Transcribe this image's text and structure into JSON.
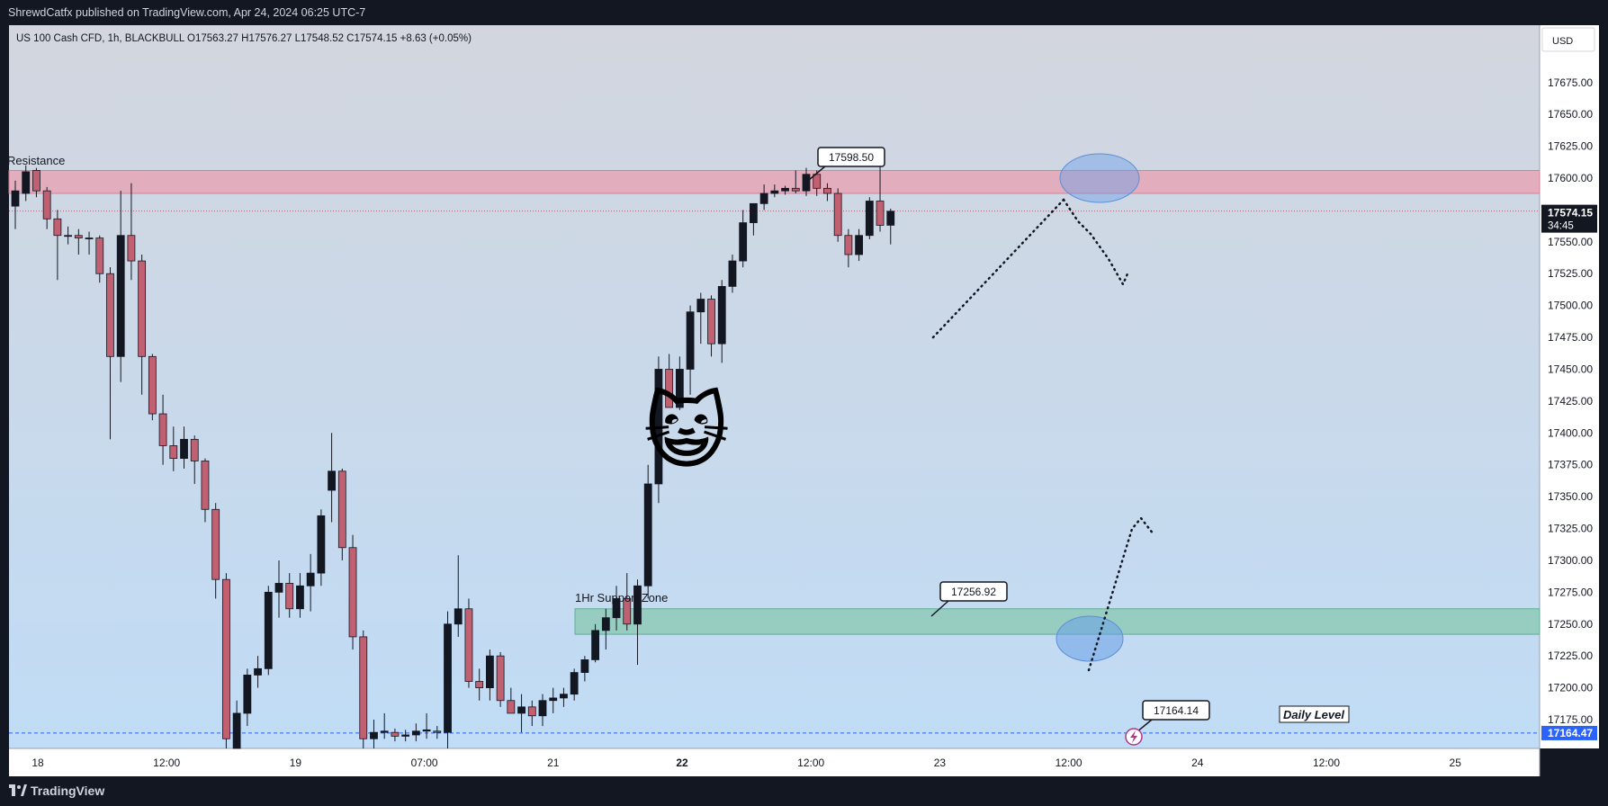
{
  "header": {
    "published": "ShrewdCatfx published on TradingView.com, Apr 24, 2024 06:25 UTC-7",
    "symbol_line": "US 100 Cash CFD, 1h, BLACKBULL  O17563.27  H17576.27  L17548.52  C17574.15  +8.63 (+0.05%)"
  },
  "footer": {
    "brand": "TradingView"
  },
  "price_scale": {
    "currency": "USD",
    "ticks": [
      "17675.00",
      "17650.00",
      "17625.00",
      "17600.00",
      "17575.00",
      "17550.00",
      "17525.00",
      "17500.00",
      "17475.00",
      "17450.00",
      "17425.00",
      "17400.00",
      "17375.00",
      "17350.00",
      "17325.00",
      "17300.00",
      "17275.00",
      "17250.00",
      "17225.00",
      "17200.00",
      "17175.00"
    ],
    "last_price": "17574.15",
    "countdown": "34:45",
    "daily_level_price": "17164.47"
  },
  "time_scale": {
    "labels": [
      {
        "text": "18",
        "bold": false
      },
      {
        "text": "12:00",
        "bold": false
      },
      {
        "text": "19",
        "bold": false
      },
      {
        "text": "07:00",
        "bold": false
      },
      {
        "text": "21",
        "bold": false
      },
      {
        "text": "22",
        "bold": true
      },
      {
        "text": "12:00",
        "bold": false
      },
      {
        "text": "23",
        "bold": false
      },
      {
        "text": "12:00",
        "bold": false
      },
      {
        "text": "24",
        "bold": false
      },
      {
        "text": "12:00",
        "bold": false
      },
      {
        "text": "25",
        "bold": false
      },
      {
        "text": "12:00",
        "bold": false
      }
    ]
  },
  "annotations": {
    "resistance_label": "Resistance",
    "support_label": "1Hr Support Zone",
    "daily_level_label": "Daily Level",
    "callouts": [
      "17598.50",
      "17256.92",
      "17164.14"
    ],
    "emoji": "😺"
  },
  "colors": {
    "bull": "#131722",
    "bear": "#c06070",
    "resistance_zone": "#e8a0b0",
    "support_zone": "#88c8b0",
    "ellipse": "#6aa0e8",
    "daily_level": "#2962ff",
    "bg_top": "#d3d6de",
    "bg_bottom": "#c0dcf6"
  },
  "chart_data": {
    "type": "candlestick",
    "symbol": "US 100 Cash CFD",
    "timeframe": "1h",
    "broker": "BLACKBULL",
    "ylim": [
      17152,
      17716
    ],
    "zones": [
      {
        "name": "Resistance",
        "from": 17588,
        "to": 17606
      },
      {
        "name": "1Hr Support Zone",
        "from": 17242,
        "to": 17262
      }
    ],
    "levels": [
      {
        "name": "Daily Level",
        "price": 17164.47
      },
      {
        "name": "last",
        "price": 17574.15
      }
    ],
    "candles": [
      {
        "o": 17578,
        "h": 17598,
        "l": 17560,
        "c": 17590
      },
      {
        "o": 17588,
        "h": 17610,
        "l": 17582,
        "c": 17605
      },
      {
        "o": 17606,
        "h": 17608,
        "l": 17585,
        "c": 17590
      },
      {
        "o": 17590,
        "h": 17593,
        "l": 17560,
        "c": 17568
      },
      {
        "o": 17568,
        "h": 17575,
        "l": 17520,
        "c": 17555
      },
      {
        "o": 17555,
        "h": 17562,
        "l": 17548,
        "c": 17555
      },
      {
        "o": 17555,
        "h": 17560,
        "l": 17540,
        "c": 17553
      },
      {
        "o": 17553,
        "h": 17558,
        "l": 17540,
        "c": 17553
      },
      {
        "o": 17553,
        "h": 17555,
        "l": 17518,
        "c": 17525
      },
      {
        "o": 17525,
        "h": 17530,
        "l": 17395,
        "c": 17460
      },
      {
        "o": 17460,
        "h": 17590,
        "l": 17440,
        "c": 17555
      },
      {
        "o": 17555,
        "h": 17596,
        "l": 17520,
        "c": 17535
      },
      {
        "o": 17535,
        "h": 17540,
        "l": 17430,
        "c": 17460
      },
      {
        "o": 17460,
        "h": 17462,
        "l": 17410,
        "c": 17415
      },
      {
        "o": 17415,
        "h": 17430,
        "l": 17375,
        "c": 17390
      },
      {
        "o": 17390,
        "h": 17405,
        "l": 17370,
        "c": 17380
      },
      {
        "o": 17380,
        "h": 17405,
        "l": 17372,
        "c": 17395
      },
      {
        "o": 17395,
        "h": 17398,
        "l": 17360,
        "c": 17378
      },
      {
        "o": 17378,
        "h": 17380,
        "l": 17330,
        "c": 17340
      },
      {
        "o": 17340,
        "h": 17345,
        "l": 17270,
        "c": 17285
      },
      {
        "o": 17285,
        "h": 17290,
        "l": 17140,
        "c": 17160
      },
      {
        "o": 17152,
        "h": 17190,
        "l": 17140,
        "c": 17180
      },
      {
        "o": 17180,
        "h": 17215,
        "l": 17170,
        "c": 17210
      },
      {
        "o": 17210,
        "h": 17225,
        "l": 17200,
        "c": 17215
      },
      {
        "o": 17215,
        "h": 17280,
        "l": 17210,
        "c": 17275
      },
      {
        "o": 17275,
        "h": 17300,
        "l": 17255,
        "c": 17282
      },
      {
        "o": 17282,
        "h": 17290,
        "l": 17255,
        "c": 17262
      },
      {
        "o": 17262,
        "h": 17290,
        "l": 17255,
        "c": 17280
      },
      {
        "o": 17280,
        "h": 17305,
        "l": 17260,
        "c": 17290
      },
      {
        "o": 17290,
        "h": 17340,
        "l": 17280,
        "c": 17335
      },
      {
        "o": 17355,
        "h": 17400,
        "l": 17330,
        "c": 17370
      },
      {
        "o": 17370,
        "h": 17372,
        "l": 17300,
        "c": 17310
      },
      {
        "o": 17310,
        "h": 17320,
        "l": 17230,
        "c": 17240
      },
      {
        "o": 17240,
        "h": 17245,
        "l": 17150,
        "c": 17160
      },
      {
        "o": 17160,
        "h": 17175,
        "l": 17150,
        "c": 17165
      },
      {
        "o": 17165,
        "h": 17180,
        "l": 17160,
        "c": 17166
      },
      {
        "o": 17165,
        "h": 17168,
        "l": 17158,
        "c": 17162
      },
      {
        "o": 17162,
        "h": 17167,
        "l": 17158,
        "c": 17163
      },
      {
        "o": 17163,
        "h": 17172,
        "l": 17158,
        "c": 17166
      },
      {
        "o": 17166,
        "h": 17180,
        "l": 17160,
        "c": 17167
      },
      {
        "o": 17166,
        "h": 17170,
        "l": 17160,
        "c": 17165
      },
      {
        "o": 17165,
        "h": 17260,
        "l": 17150,
        "c": 17250
      },
      {
        "o": 17250,
        "h": 17304,
        "l": 17240,
        "c": 17262
      },
      {
        "o": 17262,
        "h": 17270,
        "l": 17200,
        "c": 17205
      },
      {
        "o": 17205,
        "h": 17215,
        "l": 17190,
        "c": 17200
      },
      {
        "o": 17200,
        "h": 17230,
        "l": 17190,
        "c": 17225
      },
      {
        "o": 17225,
        "h": 17228,
        "l": 17185,
        "c": 17190
      },
      {
        "o": 17190,
        "h": 17200,
        "l": 17180,
        "c": 17180
      },
      {
        "o": 17180,
        "h": 17195,
        "l": 17165,
        "c": 17185
      },
      {
        "o": 17185,
        "h": 17190,
        "l": 17170,
        "c": 17178
      },
      {
        "o": 17178,
        "h": 17195,
        "l": 17170,
        "c": 17190
      },
      {
        "o": 17190,
        "h": 17200,
        "l": 17180,
        "c": 17192
      },
      {
        "o": 17192,
        "h": 17200,
        "l": 17185,
        "c": 17195
      },
      {
        "o": 17195,
        "h": 17215,
        "l": 17190,
        "c": 17212
      },
      {
        "o": 17212,
        "h": 17225,
        "l": 17205,
        "c": 17222
      },
      {
        "o": 17222,
        "h": 17250,
        "l": 17220,
        "c": 17245
      },
      {
        "o": 17245,
        "h": 17262,
        "l": 17230,
        "c": 17255
      },
      {
        "o": 17255,
        "h": 17280,
        "l": 17245,
        "c": 17270
      },
      {
        "o": 17270,
        "h": 17290,
        "l": 17245,
        "c": 17250
      },
      {
        "o": 17250,
        "h": 17285,
        "l": 17218,
        "c": 17280
      },
      {
        "o": 17280,
        "h": 17375,
        "l": 17270,
        "c": 17360
      },
      {
        "o": 17360,
        "h": 17460,
        "l": 17345,
        "c": 17450
      },
      {
        "o": 17450,
        "h": 17462,
        "l": 17420,
        "c": 17420
      },
      {
        "o": 17420,
        "h": 17460,
        "l": 17418,
        "c": 17450
      },
      {
        "o": 17450,
        "h": 17500,
        "l": 17430,
        "c": 17495
      },
      {
        "o": 17495,
        "h": 17510,
        "l": 17470,
        "c": 17505
      },
      {
        "o": 17505,
        "h": 17508,
        "l": 17460,
        "c": 17470
      },
      {
        "o": 17470,
        "h": 17520,
        "l": 17455,
        "c": 17515
      },
      {
        "o": 17515,
        "h": 17540,
        "l": 17510,
        "c": 17535
      },
      {
        "o": 17535,
        "h": 17575,
        "l": 17530,
        "c": 17565
      },
      {
        "o": 17565,
        "h": 17580,
        "l": 17555,
        "c": 17580
      },
      {
        "o": 17580,
        "h": 17595,
        "l": 17575,
        "c": 17588
      },
      {
        "o": 17588,
        "h": 17595,
        "l": 17585,
        "c": 17590
      },
      {
        "o": 17590,
        "h": 17594,
        "l": 17587,
        "c": 17592
      },
      {
        "o": 17592,
        "h": 17606,
        "l": 17588,
        "c": 17590
      },
      {
        "o": 17590,
        "h": 17608,
        "l": 17586,
        "c": 17603
      },
      {
        "o": 17603,
        "h": 17606,
        "l": 17586,
        "c": 17592
      },
      {
        "o": 17592,
        "h": 17596,
        "l": 17582,
        "c": 17588
      },
      {
        "o": 17588,
        "h": 17592,
        "l": 17550,
        "c": 17555
      },
      {
        "o": 17555,
        "h": 17560,
        "l": 17530,
        "c": 17540
      },
      {
        "o": 17540,
        "h": 17560,
        "l": 17535,
        "c": 17555
      },
      {
        "o": 17555,
        "h": 17585,
        "l": 17552,
        "c": 17582
      },
      {
        "o": 17582,
        "h": 17615,
        "l": 17558,
        "c": 17563
      },
      {
        "o": 17563,
        "h": 17576,
        "l": 17548,
        "c": 17574
      }
    ]
  }
}
